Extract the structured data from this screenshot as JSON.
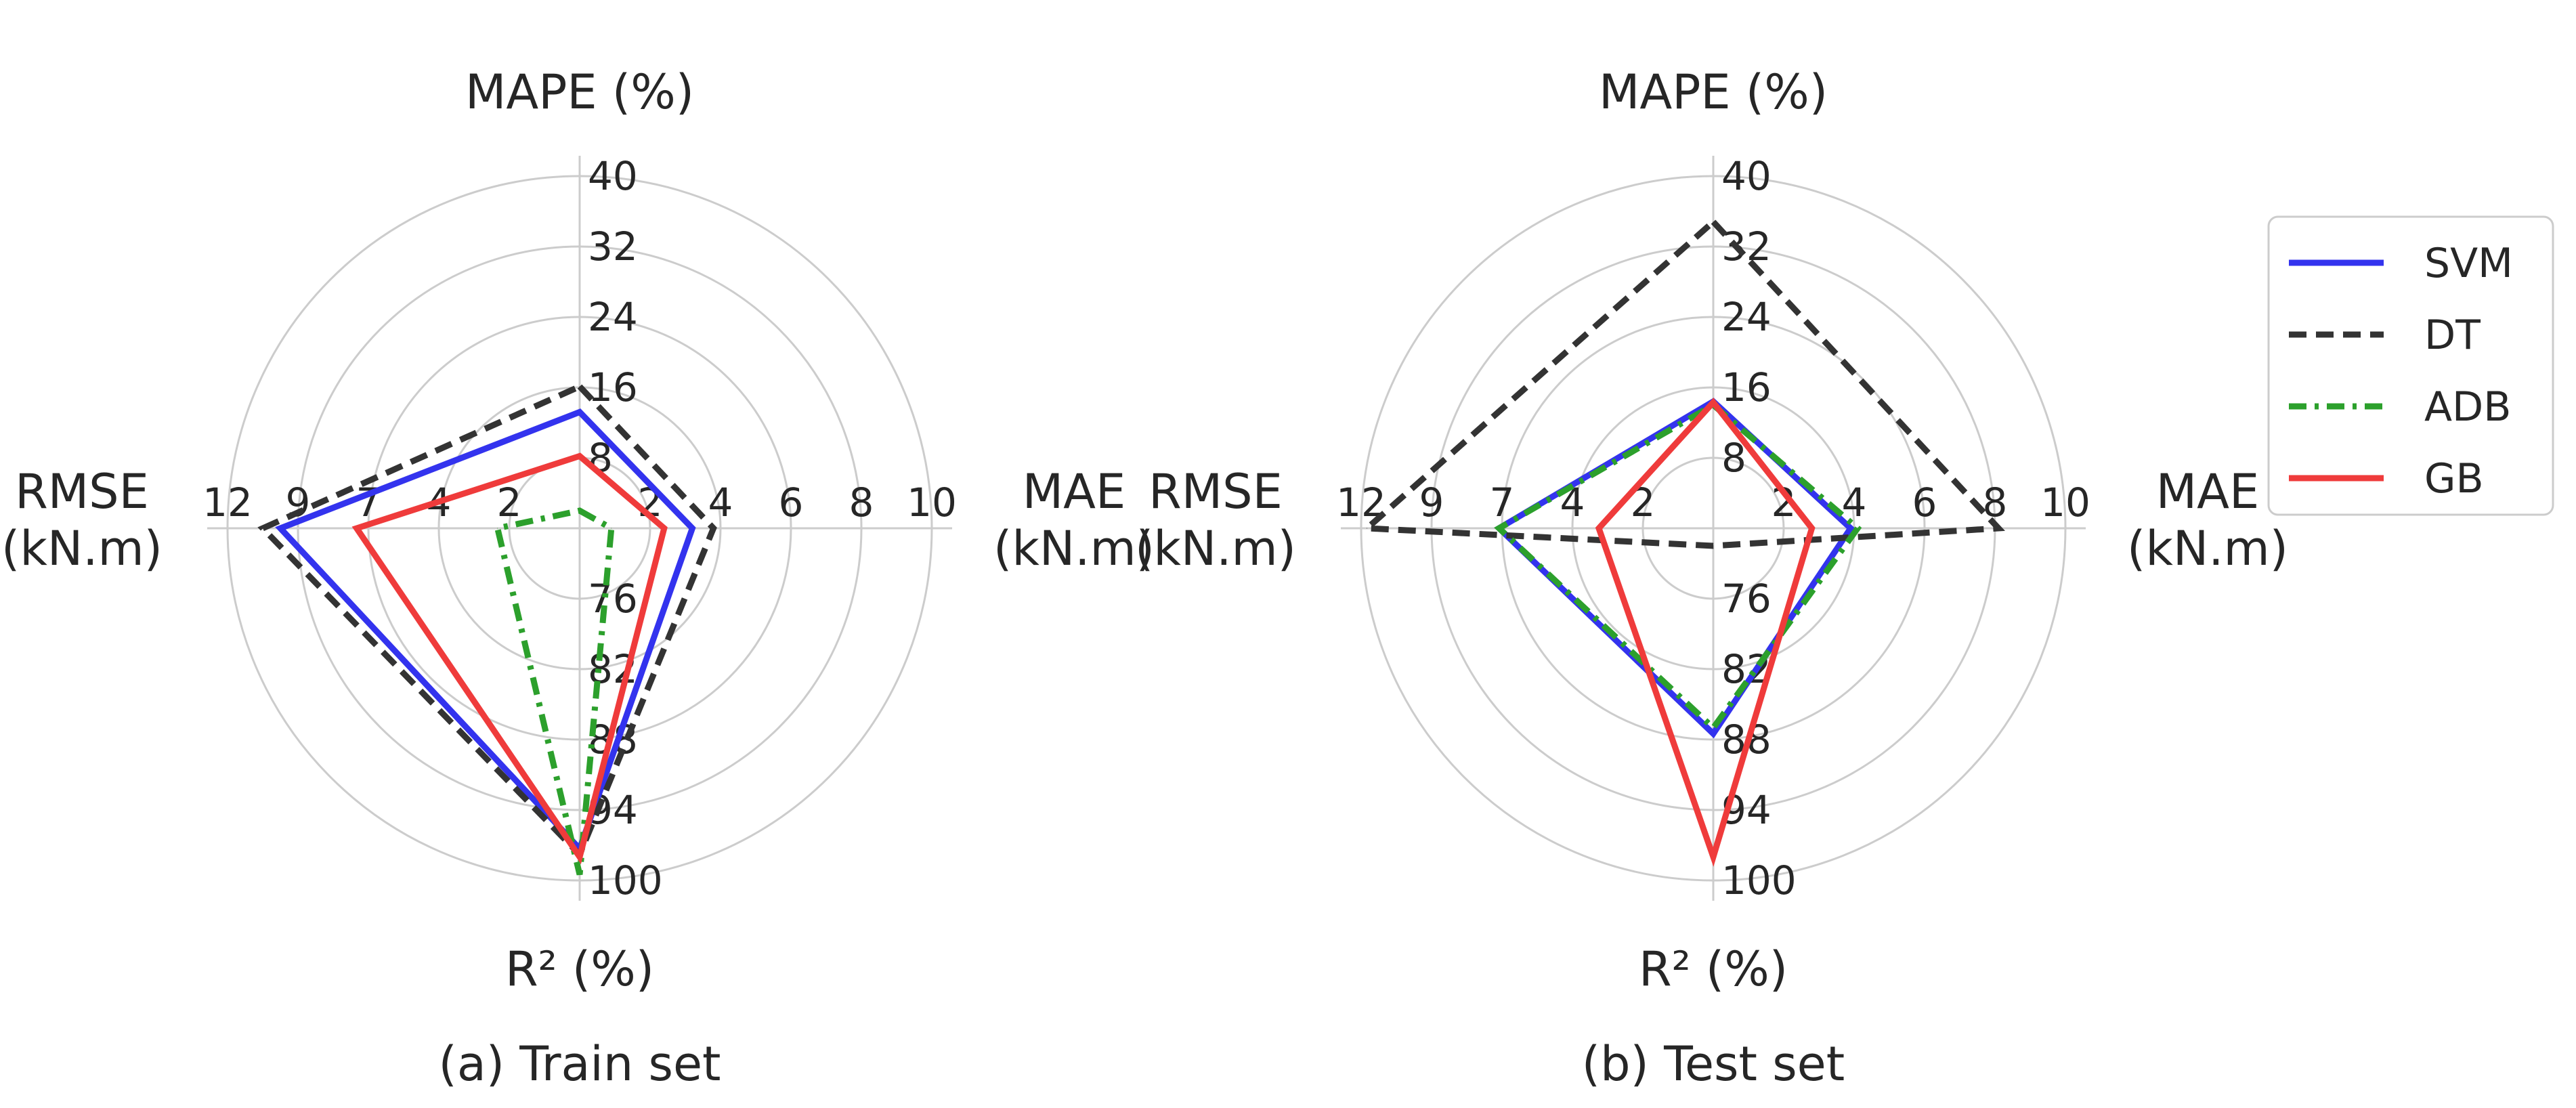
{
  "chart_data": [
    {
      "type": "radar",
      "caption": "(a) Train set",
      "axes": [
        {
          "label": "MAPE (%)",
          "label_lines": [
            "MAPE (%)"
          ],
          "ticks": [
            "40",
            "32",
            "24",
            "16",
            "8"
          ],
          "range": [
            0,
            40
          ],
          "inverted": false
        },
        {
          "label": "MAE (kN.m)",
          "label_lines": [
            "MAE",
            "(kN.m)"
          ],
          "ticks": [
            "2",
            "4",
            "6",
            "8",
            "10"
          ],
          "range": [
            0,
            10
          ],
          "inverted": false
        },
        {
          "label": "R² (%)",
          "label_lines": [
            "R² (%)"
          ],
          "ticks": [
            "76",
            "82",
            "88",
            "94",
            "100"
          ],
          "range": [
            70,
            100
          ],
          "inverted": false
        },
        {
          "label": "RMSE (kN.m)",
          "label_lines": [
            "RMSE",
            "(kN.m)"
          ],
          "ticks": [
            "2",
            "4",
            "7",
            "9",
            "12"
          ],
          "range": [
            0,
            12
          ],
          "inverted": false
        }
      ],
      "series": [
        {
          "name": "SVM",
          "values": [
            13.2,
            3.2,
            97.3,
            10.2
          ]
        },
        {
          "name": "DT",
          "values": [
            16.1,
            3.8,
            97.8,
            10.8
          ]
        },
        {
          "name": "ADB",
          "values": [
            2.0,
            0.9,
            99.5,
            2.8
          ]
        },
        {
          "name": "GB",
          "values": [
            8.2,
            2.4,
            98.0,
            7.6
          ]
        }
      ]
    },
    {
      "type": "radar",
      "caption": "(b) Test set",
      "axes": [
        {
          "label": "MAPE (%)",
          "label_lines": [
            "MAPE (%)"
          ],
          "ticks": [
            "40",
            "32",
            "24",
            "16",
            "8"
          ],
          "range": [
            0,
            40
          ],
          "inverted": false
        },
        {
          "label": "MAE (kN.m)",
          "label_lines": [
            "MAE",
            "(kN.m)"
          ],
          "ticks": [
            "2",
            "4",
            "6",
            "8",
            "10"
          ],
          "range": [
            0,
            10
          ],
          "inverted": false
        },
        {
          "label": "R² (%)",
          "label_lines": [
            "R² (%)"
          ],
          "ticks": [
            "76",
            "82",
            "88",
            "94",
            "100"
          ],
          "range": [
            70,
            100
          ],
          "inverted": false
        },
        {
          "label": "RMSE (kN.m)",
          "label_lines": [
            "RMSE",
            "(kN.m)"
          ],
          "ticks": [
            "2",
            "4",
            "7",
            "9",
            "12"
          ],
          "range": [
            0,
            12
          ],
          "inverted": false
        }
      ],
      "series": [
        {
          "name": "SVM",
          "values": [
            14.4,
            3.9,
            87.5,
            7.3
          ]
        },
        {
          "name": "DT",
          "values": [
            34.8,
            8.1,
            71.5,
            11.8
          ]
        },
        {
          "name": "ADB",
          "values": [
            14.0,
            4.1,
            87.0,
            7.3
          ]
        },
        {
          "name": "GB",
          "values": [
            14.3,
            2.8,
            98.0,
            3.9
          ]
        }
      ]
    }
  ],
  "legend": {
    "placement": "right",
    "entries": [
      {
        "name": "SVM",
        "color": "#3333ee",
        "dash": "solid"
      },
      {
        "name": "DT",
        "color": "#333333",
        "dash": "dashed"
      },
      {
        "name": "ADB",
        "color": "#2ca02c",
        "dash": "dashdot"
      },
      {
        "name": "GB",
        "color": "#ef3b3b",
        "dash": "solid"
      }
    ]
  },
  "style": {
    "grid": true,
    "grid_color": "#cccccc",
    "text_color": "#262626"
  }
}
